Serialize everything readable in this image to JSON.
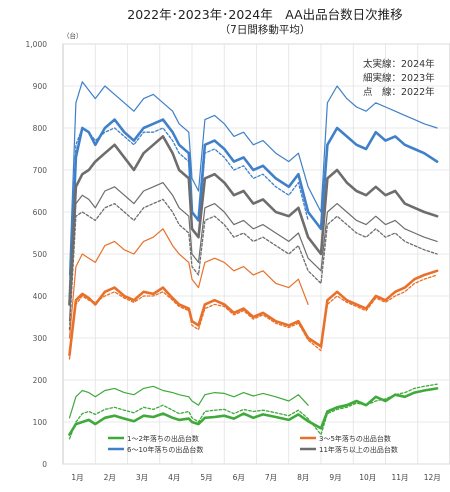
{
  "chart_data": {
    "type": "line",
    "title": "2022年･2023年･2024年　AA出品台数日次推移",
    "subtitle": "（7日間移動平均）",
    "y_unit": "（台）",
    "ylim": [
      0,
      1000
    ],
    "y_ticks": [
      0,
      100,
      200,
      300,
      400,
      500,
      600,
      700,
      800,
      900,
      1000
    ],
    "y_tick_labels": [
      "0",
      "100",
      "200",
      "300",
      "400",
      "500",
      "600",
      "700",
      "800",
      "900",
      "1,000"
    ],
    "x_ticks": [
      "1月",
      "2月",
      "3月",
      "4月",
      "5月",
      "6月",
      "7月",
      "8月",
      "9月",
      "10月",
      "11月",
      "12月"
    ],
    "grid": true,
    "line_style_legend": [
      {
        "label": "太実線：2024年",
        "style": "solid-thick"
      },
      {
        "label": "細実線：2023年",
        "style": "solid-thin"
      },
      {
        "label": "点　線：2022年",
        "style": "dotted"
      }
    ],
    "legend": [
      {
        "label": "1～2年落ちの出品台数",
        "color": "#3faa3a"
      },
      {
        "label": "3～5年落ちの出品台数",
        "color": "#e8702a"
      },
      {
        "label": "6～10年落ちの出品台数",
        "color": "#3f80c9"
      },
      {
        "label": "11年落ち以上の出品台数",
        "color": "#6d6d6d"
      }
    ],
    "series": [
      {
        "group": "1～2年落ちの出品台数",
        "year": "2024",
        "style": "solid-thick",
        "color": "#3faa3a",
        "x": [
          0.2,
          0.4,
          0.6,
          0.8,
          1.0,
          1.3,
          1.6,
          1.9,
          2.2,
          2.5,
          2.8,
          3.1,
          3.4,
          3.6,
          3.9,
          4.0,
          4.2,
          4.4,
          4.7,
          5.0,
          5.3,
          5.6,
          5.9,
          6.2,
          6.6,
          7.0,
          7.3,
          7.6,
          8.0,
          8.2,
          8.5,
          8.8,
          9.1,
          9.4,
          9.7,
          10.0,
          10.3,
          10.6,
          10.9,
          11.2,
          11.6
        ],
        "y": [
          70,
          95,
          100,
          105,
          95,
          110,
          115,
          108,
          102,
          115,
          112,
          120,
          110,
          105,
          108,
          100,
          95,
          110,
          112,
          115,
          108,
          120,
          110,
          118,
          112,
          105,
          118,
          102,
          85,
          125,
          135,
          140,
          150,
          140,
          160,
          150,
          165,
          160,
          170,
          175,
          180
        ]
      },
      {
        "group": "1～2年落ちの出品台数",
        "year": "2023",
        "style": "solid-thin",
        "color": "#3faa3a",
        "x": [
          0.2,
          0.4,
          0.6,
          0.8,
          1.0,
          1.3,
          1.6,
          1.9,
          2.2,
          2.5,
          2.8,
          3.1,
          3.4,
          3.6,
          3.9,
          4.0,
          4.2,
          4.4,
          4.7,
          5.0,
          5.3,
          5.6,
          5.9,
          6.2,
          6.6,
          7.0,
          7.3,
          7.6
        ],
        "y": [
          110,
          160,
          175,
          170,
          160,
          175,
          180,
          170,
          165,
          180,
          185,
          175,
          170,
          165,
          160,
          150,
          140,
          165,
          170,
          168,
          160,
          170,
          162,
          168,
          160,
          150,
          165,
          140
        ]
      },
      {
        "group": "1～2年落ちの出品台数",
        "year": "2022",
        "style": "dotted",
        "color": "#3faa3a",
        "x": [
          0.2,
          0.4,
          0.6,
          0.8,
          1.0,
          1.3,
          1.6,
          1.9,
          2.2,
          2.5,
          2.8,
          3.1,
          3.4,
          3.6,
          3.9,
          4.0,
          4.2,
          4.4,
          4.7,
          5.0,
          5.3,
          5.6,
          5.9,
          6.2,
          6.6,
          7.0,
          7.3,
          7.6,
          8.0,
          8.2,
          8.5,
          8.8,
          9.1,
          9.4,
          9.7,
          10.0,
          10.3,
          10.6,
          10.9,
          11.2,
          11.6
        ],
        "y": [
          60,
          100,
          120,
          125,
          118,
          130,
          135,
          128,
          122,
          135,
          130,
          140,
          128,
          120,
          125,
          110,
          100,
          125,
          128,
          130,
          120,
          130,
          125,
          128,
          122,
          115,
          128,
          108,
          70,
          120,
          130,
          135,
          145,
          140,
          150,
          155,
          165,
          170,
          180,
          185,
          190
        ]
      },
      {
        "group": "3～5年落ちの出品台数",
        "year": "2024",
        "style": "solid-thick",
        "color": "#e8702a",
        "x": [
          0.2,
          0.4,
          0.6,
          0.8,
          1.0,
          1.3,
          1.6,
          1.9,
          2.2,
          2.5,
          2.8,
          3.1,
          3.4,
          3.6,
          3.9,
          4.0,
          4.2,
          4.4,
          4.7,
          5.0,
          5.3,
          5.6,
          5.9,
          6.2,
          6.6,
          7.0,
          7.3,
          7.6,
          8.0,
          8.2,
          8.5,
          8.8,
          9.1,
          9.4,
          9.7,
          10.0,
          10.3,
          10.6,
          10.9,
          11.2,
          11.6
        ],
        "y": [
          260,
          390,
          405,
          395,
          380,
          410,
          420,
          400,
          390,
          410,
          405,
          420,
          395,
          380,
          370,
          340,
          330,
          380,
          390,
          380,
          360,
          370,
          350,
          360,
          340,
          330,
          340,
          300,
          280,
          390,
          410,
          390,
          380,
          370,
          400,
          390,
          410,
          420,
          440,
          450,
          460
        ]
      },
      {
        "group": "3～5年落ちの出品台数",
        "year": "2023",
        "style": "solid-thin",
        "color": "#e8702a",
        "x": [
          0.2,
          0.4,
          0.6,
          0.8,
          1.0,
          1.3,
          1.6,
          1.9,
          2.2,
          2.5,
          2.8,
          3.1,
          3.4,
          3.6,
          3.9,
          4.0,
          4.2,
          4.4,
          4.7,
          5.0,
          5.3,
          5.6,
          5.9,
          6.2,
          6.6,
          7.0,
          7.3,
          7.6
        ],
        "y": [
          300,
          470,
          500,
          490,
          480,
          520,
          530,
          510,
          500,
          530,
          540,
          560,
          520,
          500,
          480,
          440,
          420,
          480,
          490,
          480,
          460,
          470,
          450,
          460,
          430,
          420,
          440,
          380
        ]
      },
      {
        "group": "3～5年落ちの出品台数",
        "year": "2022",
        "style": "dotted",
        "color": "#e8702a",
        "x": [
          0.2,
          0.4,
          0.6,
          0.8,
          1.0,
          1.3,
          1.6,
          1.9,
          2.2,
          2.5,
          2.8,
          3.1,
          3.4,
          3.6,
          3.9,
          4.0,
          4.2,
          4.4,
          4.7,
          5.0,
          5.3,
          5.6,
          5.9,
          6.2,
          6.6,
          7.0,
          7.3,
          7.6,
          8.0,
          8.2,
          8.5,
          8.8,
          9.1,
          9.4,
          9.7,
          10.0,
          10.3,
          10.6,
          10.9,
          11.2,
          11.6
        ],
        "y": [
          250,
          380,
          400,
          390,
          385,
          400,
          410,
          395,
          385,
          400,
          400,
          410,
          390,
          375,
          365,
          330,
          320,
          370,
          380,
          375,
          355,
          365,
          345,
          355,
          335,
          325,
          335,
          295,
          270,
          380,
          400,
          385,
          375,
          365,
          395,
          385,
          400,
          410,
          430,
          440,
          450
        ]
      },
      {
        "group": "6～10年落ちの出品台数",
        "year": "2024",
        "style": "solid-thick",
        "color": "#3f80c9",
        "x": [
          0.2,
          0.4,
          0.6,
          0.8,
          1.0,
          1.3,
          1.6,
          1.9,
          2.2,
          2.5,
          2.8,
          3.1,
          3.4,
          3.6,
          3.9,
          4.0,
          4.2,
          4.4,
          4.7,
          5.0,
          5.3,
          5.6,
          5.9,
          6.2,
          6.6,
          7.0,
          7.3,
          7.6,
          8.0,
          8.2,
          8.5,
          8.8,
          9.1,
          9.4,
          9.7,
          10.0,
          10.3,
          10.6,
          10.9,
          11.2,
          11.6
        ],
        "y": [
          380,
          730,
          800,
          790,
          760,
          800,
          820,
          790,
          770,
          800,
          810,
          820,
          790,
          760,
          740,
          600,
          580,
          760,
          770,
          750,
          720,
          730,
          700,
          710,
          680,
          660,
          690,
          600,
          560,
          760,
          800,
          780,
          760,
          750,
          790,
          770,
          780,
          760,
          750,
          740,
          720
        ]
      },
      {
        "group": "6～10年落ちの出品台数",
        "year": "2023",
        "style": "solid-thin",
        "color": "#3f80c9",
        "x": [
          0.2,
          0.4,
          0.6,
          0.8,
          1.0,
          1.3,
          1.6,
          1.9,
          2.2,
          2.5,
          2.8,
          3.1,
          3.4,
          3.6,
          3.9,
          4.0,
          4.2,
          4.4,
          4.7,
          5.0,
          5.3,
          5.6,
          5.9,
          6.2,
          6.6,
          7.0,
          7.3,
          7.6,
          8.0,
          8.2,
          8.5,
          8.8,
          9.1,
          9.4,
          9.7,
          10.0,
          10.3,
          10.6,
          10.9,
          11.2,
          11.6
        ],
        "y": [
          450,
          860,
          910,
          890,
          870,
          900,
          880,
          860,
          840,
          870,
          880,
          860,
          840,
          810,
          790,
          680,
          650,
          820,
          830,
          810,
          780,
          790,
          760,
          770,
          740,
          720,
          740,
          660,
          600,
          860,
          900,
          870,
          850,
          840,
          860,
          850,
          840,
          830,
          820,
          810,
          800
        ]
      },
      {
        "group": "6～10年落ちの出品台数",
        "year": "2022",
        "style": "dotted",
        "color": "#3f80c9",
        "x": [
          0.2,
          0.4,
          0.6,
          0.8,
          1.0,
          1.3,
          1.6,
          1.9,
          2.2,
          2.5,
          2.8,
          3.1,
          3.4,
          3.6,
          3.9,
          4.0,
          4.2,
          4.4,
          4.7,
          5.0,
          5.3,
          5.6,
          5.9,
          6.2,
          6.6,
          7.0,
          7.3,
          7.6
        ],
        "y": [
          420,
          760,
          800,
          790,
          770,
          790,
          800,
          780,
          760,
          790,
          790,
          800,
          770,
          740,
          720,
          560,
          540,
          740,
          750,
          730,
          700,
          710,
          680,
          690,
          660,
          640,
          670,
          580
        ]
      },
      {
        "group": "11年落ち以上の出品台数",
        "year": "2024",
        "style": "solid-thick",
        "color": "#6d6d6d",
        "x": [
          0.2,
          0.4,
          0.6,
          0.8,
          1.0,
          1.3,
          1.6,
          1.9,
          2.2,
          2.5,
          2.8,
          3.1,
          3.4,
          3.6,
          3.9,
          4.0,
          4.2,
          4.4,
          4.7,
          5.0,
          5.3,
          5.6,
          5.9,
          6.2,
          6.6,
          7.0,
          7.3,
          7.6,
          8.0,
          8.2,
          8.5,
          8.8,
          9.1,
          9.4,
          9.7,
          10.0,
          10.3,
          10.6,
          10.9,
          11.2,
          11.6
        ],
        "y": [
          380,
          660,
          690,
          700,
          720,
          740,
          760,
          730,
          700,
          740,
          760,
          780,
          740,
          700,
          680,
          560,
          540,
          680,
          690,
          670,
          640,
          650,
          620,
          630,
          600,
          590,
          610,
          540,
          500,
          680,
          700,
          670,
          650,
          640,
          660,
          640,
          650,
          620,
          610,
          600,
          590
        ]
      },
      {
        "group": "11年落ち以上の出品台数",
        "year": "2023",
        "style": "solid-thin",
        "color": "#6d6d6d",
        "x": [
          0.2,
          0.4,
          0.6,
          0.8,
          1.0,
          1.3,
          1.6,
          1.9,
          2.2,
          2.5,
          2.8,
          3.1,
          3.4,
          3.6,
          3.9,
          4.0,
          4.2,
          4.4,
          4.7,
          5.0,
          5.3,
          5.6,
          5.9,
          6.2,
          6.6,
          7.0,
          7.3,
          7.6,
          8.0,
          8.2,
          8.5,
          8.8,
          9.1,
          9.4,
          9.7,
          10.0,
          10.3,
          10.6,
          10.9,
          11.2,
          11.6
        ],
        "y": [
          340,
          620,
          640,
          630,
          610,
          650,
          660,
          640,
          620,
          650,
          660,
          670,
          640,
          610,
          590,
          500,
          480,
          610,
          620,
          600,
          570,
          580,
          560,
          570,
          550,
          530,
          550,
          490,
          460,
          600,
          620,
          600,
          580,
          570,
          590,
          570,
          580,
          560,
          550,
          540,
          530
        ]
      },
      {
        "group": "11年落ち以上の出品台数",
        "year": "2022",
        "style": "dotted",
        "color": "#6d6d6d",
        "x": [
          0.2,
          0.4,
          0.6,
          0.8,
          1.0,
          1.3,
          1.6,
          1.9,
          2.2,
          2.5,
          2.8,
          3.1,
          3.4,
          3.6,
          3.9,
          4.0,
          4.2,
          4.4,
          4.7,
          5.0,
          5.3,
          5.6,
          5.9,
          6.2,
          6.6,
          7.0,
          7.3,
          7.6,
          8.0,
          8.2,
          8.5,
          8.8,
          9.1,
          9.4,
          9.7,
          10.0,
          10.3,
          10.6,
          10.9,
          11.2,
          11.6
        ],
        "y": [
          320,
          590,
          600,
          590,
          580,
          610,
          620,
          600,
          580,
          610,
          620,
          630,
          600,
          570,
          550,
          470,
          450,
          580,
          590,
          570,
          540,
          550,
          530,
          540,
          520,
          500,
          520,
          460,
          430,
          570,
          590,
          570,
          550,
          540,
          560,
          540,
          550,
          530,
          520,
          510,
          500
        ]
      }
    ]
  }
}
